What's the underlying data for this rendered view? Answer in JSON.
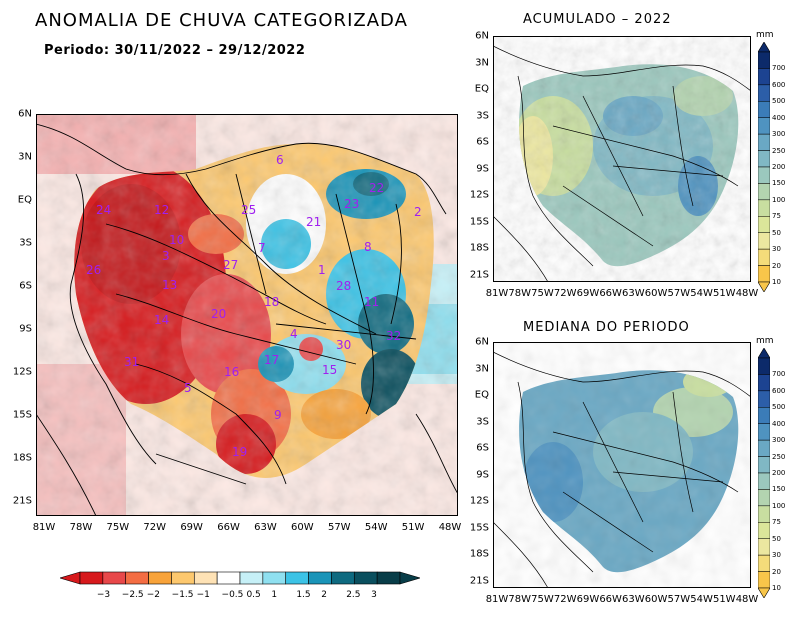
{
  "main_title": "ANOMALIA DE CHUVA CATEGORIZADA",
  "period": "Periodo: 30/11/2022 – 29/12/2022",
  "right_top_title": "ACUMULADO – 2022",
  "right_bottom_title": "MEDIANA DO PERIODO",
  "unit": "mm",
  "lat_labels": [
    "6N",
    "3N",
    "EQ",
    "3S",
    "6S",
    "9S",
    "12S",
    "15S",
    "18S",
    "21S"
  ],
  "lon_labels": [
    "81W",
    "78W",
    "75W",
    "72W",
    "69W",
    "66W",
    "63W",
    "60W",
    "57W",
    "54W",
    "51W",
    "48W"
  ],
  "anomaly_colorbar": {
    "labels": [
      "−3",
      "−2.5",
      "−2",
      "−1.5",
      "−1",
      "−0.5",
      "0.5",
      "1",
      "1.5",
      "2",
      "2.5",
      "3"
    ],
    "colors": [
      "#d7191c",
      "#e8484a",
      "#f46d43",
      "#f8a33a",
      "#fdc86e",
      "#fee2b5",
      "#ffffff",
      "#c6f0f7",
      "#8fe0f0",
      "#3cc3e6",
      "#1a94b8",
      "#0e6a80",
      "#0a4f5e",
      "#083d48"
    ]
  },
  "precip_colorbar": {
    "labels": [
      "700",
      "600",
      "500",
      "400",
      "300",
      "250",
      "200",
      "150",
      "100",
      "75",
      "50",
      "30",
      "20",
      "10"
    ],
    "colors": [
      "#0c2a6a",
      "#1c4391",
      "#2c5ea8",
      "#3b7cb8",
      "#4f93c0",
      "#6aa8c4",
      "#80b8c4",
      "#9bc8be",
      "#b3d4b0",
      "#c8dea0",
      "#dbe69a",
      "#ece7a0",
      "#f4dc7a",
      "#f8c64a"
    ]
  },
  "basin_numbers": [
    "6",
    "22",
    "23",
    "24",
    "12",
    "25",
    "21",
    "2",
    "10",
    "3",
    "7",
    "8",
    "26",
    "27",
    "13",
    "1",
    "28",
    "18",
    "11",
    "20",
    "14",
    "4",
    "30",
    "32",
    "31",
    "17",
    "15",
    "16",
    "5",
    "9",
    "19"
  ]
}
